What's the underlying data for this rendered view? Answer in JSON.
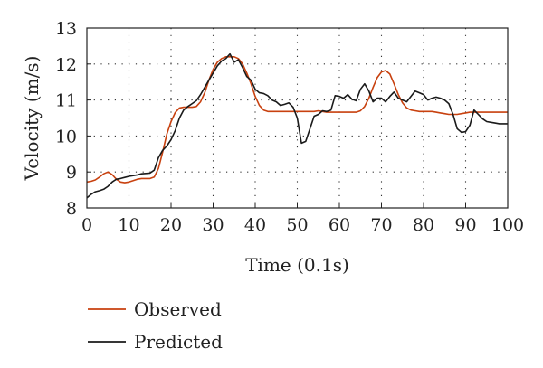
{
  "chart_data": {
    "type": "line",
    "xlabel": "Time (0.1s)",
    "ylabel": "Velocity (m/s)",
    "xlim": [
      0,
      100
    ],
    "ylim": [
      8,
      13
    ],
    "xticks": [
      "0",
      "10",
      "20",
      "30",
      "40",
      "50",
      "60",
      "70",
      "80",
      "90",
      "100"
    ],
    "yticks": [
      "8",
      "9",
      "10",
      "11",
      "12",
      "13"
    ],
    "grid": "dotted",
    "legend_position": "bottom-left",
    "series": [
      {
        "name": "Observed",
        "color": "#c8410f",
        "points": [
          [
            0,
            8.72
          ],
          [
            1,
            8.74
          ],
          [
            2,
            8.78
          ],
          [
            3,
            8.86
          ],
          [
            4,
            8.95
          ],
          [
            5,
            9.0
          ],
          [
            6,
            8.93
          ],
          [
            7,
            8.8
          ],
          [
            8,
            8.72
          ],
          [
            9,
            8.7
          ],
          [
            10,
            8.72
          ],
          [
            11,
            8.76
          ],
          [
            12,
            8.8
          ],
          [
            13,
            8.82
          ],
          [
            14,
            8.82
          ],
          [
            15,
            8.82
          ],
          [
            16,
            8.86
          ],
          [
            17,
            9.1
          ],
          [
            18,
            9.55
          ],
          [
            19,
            10.05
          ],
          [
            20,
            10.4
          ],
          [
            21,
            10.65
          ],
          [
            22,
            10.78
          ],
          [
            23,
            10.8
          ],
          [
            24,
            10.8
          ],
          [
            25,
            10.8
          ],
          [
            26,
            10.82
          ],
          [
            27,
            10.95
          ],
          [
            28,
            11.2
          ],
          [
            29,
            11.55
          ],
          [
            30,
            11.85
          ],
          [
            31,
            12.05
          ],
          [
            32,
            12.15
          ],
          [
            33,
            12.2
          ],
          [
            34,
            12.2
          ],
          [
            35,
            12.2
          ],
          [
            36,
            12.15
          ],
          [
            37,
            12.0
          ],
          [
            38,
            11.75
          ],
          [
            39,
            11.45
          ],
          [
            40,
            11.1
          ],
          [
            41,
            10.85
          ],
          [
            42,
            10.72
          ],
          [
            43,
            10.68
          ],
          [
            44,
            10.68
          ],
          [
            45,
            10.68
          ],
          [
            46,
            10.68
          ],
          [
            47,
            10.68
          ],
          [
            48,
            10.68
          ],
          [
            49,
            10.68
          ],
          [
            50,
            10.68
          ],
          [
            51,
            10.68
          ],
          [
            52,
            10.68
          ],
          [
            53,
            10.68
          ],
          [
            54,
            10.68
          ],
          [
            55,
            10.7
          ],
          [
            56,
            10.68
          ],
          [
            57,
            10.66
          ],
          [
            58,
            10.66
          ],
          [
            59,
            10.66
          ],
          [
            60,
            10.66
          ],
          [
            61,
            10.66
          ],
          [
            62,
            10.66
          ],
          [
            63,
            10.66
          ],
          [
            64,
            10.66
          ],
          [
            65,
            10.7
          ],
          [
            66,
            10.82
          ],
          [
            67,
            11.05
          ],
          [
            68,
            11.35
          ],
          [
            69,
            11.62
          ],
          [
            70,
            11.78
          ],
          [
            71,
            11.82
          ],
          [
            72,
            11.72
          ],
          [
            73,
            11.45
          ],
          [
            74,
            11.15
          ],
          [
            75,
            10.92
          ],
          [
            76,
            10.78
          ],
          [
            77,
            10.72
          ],
          [
            78,
            10.7
          ],
          [
            79,
            10.68
          ],
          [
            80,
            10.68
          ],
          [
            81,
            10.68
          ],
          [
            82,
            10.68
          ],
          [
            83,
            10.66
          ],
          [
            84,
            10.64
          ],
          [
            85,
            10.62
          ],
          [
            86,
            10.6
          ],
          [
            87,
            10.6
          ],
          [
            88,
            10.6
          ],
          [
            89,
            10.62
          ],
          [
            90,
            10.64
          ],
          [
            91,
            10.66
          ],
          [
            92,
            10.66
          ],
          [
            93,
            10.66
          ],
          [
            94,
            10.66
          ],
          [
            95,
            10.66
          ],
          [
            96,
            10.66
          ],
          [
            97,
            10.66
          ],
          [
            98,
            10.66
          ],
          [
            99,
            10.66
          ],
          [
            100,
            10.66
          ]
        ]
      },
      {
        "name": "Predicted",
        "color": "#1a1a1a",
        "points": [
          [
            0,
            8.28
          ],
          [
            1,
            8.38
          ],
          [
            2,
            8.45
          ],
          [
            3,
            8.48
          ],
          [
            4,
            8.52
          ],
          [
            5,
            8.6
          ],
          [
            6,
            8.72
          ],
          [
            7,
            8.8
          ],
          [
            8,
            8.82
          ],
          [
            9,
            8.85
          ],
          [
            10,
            8.88
          ],
          [
            11,
            8.9
          ],
          [
            12,
            8.92
          ],
          [
            13,
            8.95
          ],
          [
            14,
            8.96
          ],
          [
            15,
            8.97
          ],
          [
            16,
            9.05
          ],
          [
            17,
            9.4
          ],
          [
            18,
            9.6
          ],
          [
            19,
            9.72
          ],
          [
            20,
            9.9
          ],
          [
            21,
            10.15
          ],
          [
            22,
            10.5
          ],
          [
            23,
            10.72
          ],
          [
            24,
            10.82
          ],
          [
            25,
            10.9
          ],
          [
            26,
            10.98
          ],
          [
            27,
            11.15
          ],
          [
            28,
            11.35
          ],
          [
            29,
            11.55
          ],
          [
            30,
            11.75
          ],
          [
            31,
            11.95
          ],
          [
            32,
            12.08
          ],
          [
            33,
            12.15
          ],
          [
            34,
            12.28
          ],
          [
            35,
            12.05
          ],
          [
            36,
            12.12
          ],
          [
            37,
            11.9
          ],
          [
            38,
            11.65
          ],
          [
            39,
            11.55
          ],
          [
            40,
            11.3
          ],
          [
            41,
            11.2
          ],
          [
            42,
            11.18
          ],
          [
            43,
            11.12
          ],
          [
            44,
            11.0
          ],
          [
            45,
            10.95
          ],
          [
            46,
            10.85
          ],
          [
            47,
            10.88
          ],
          [
            48,
            10.92
          ],
          [
            49,
            10.8
          ],
          [
            50,
            10.5
          ],
          [
            51,
            9.8
          ],
          [
            52,
            9.85
          ],
          [
            53,
            10.2
          ],
          [
            54,
            10.55
          ],
          [
            55,
            10.6
          ],
          [
            56,
            10.7
          ],
          [
            57,
            10.68
          ],
          [
            58,
            10.72
          ],
          [
            59,
            11.12
          ],
          [
            60,
            11.1
          ],
          [
            61,
            11.05
          ],
          [
            62,
            11.15
          ],
          [
            63,
            11.02
          ],
          [
            64,
            10.98
          ],
          [
            65,
            11.3
          ],
          [
            66,
            11.45
          ],
          [
            67,
            11.25
          ],
          [
            68,
            10.95
          ],
          [
            69,
            11.05
          ],
          [
            70,
            11.05
          ],
          [
            71,
            10.95
          ],
          [
            72,
            11.1
          ],
          [
            73,
            11.22
          ],
          [
            74,
            11.05
          ],
          [
            75,
            11.0
          ],
          [
            76,
            10.95
          ],
          [
            77,
            11.1
          ],
          [
            78,
            11.25
          ],
          [
            79,
            11.2
          ],
          [
            80,
            11.15
          ],
          [
            81,
            11.0
          ],
          [
            82,
            11.05
          ],
          [
            83,
            11.08
          ],
          [
            84,
            11.05
          ],
          [
            85,
            11.0
          ],
          [
            86,
            10.9
          ],
          [
            87,
            10.6
          ],
          [
            88,
            10.2
          ],
          [
            89,
            10.1
          ],
          [
            90,
            10.12
          ],
          [
            91,
            10.3
          ],
          [
            92,
            10.72
          ],
          [
            93,
            10.6
          ],
          [
            94,
            10.48
          ],
          [
            95,
            10.4
          ],
          [
            96,
            10.38
          ],
          [
            97,
            10.36
          ],
          [
            98,
            10.34
          ],
          [
            99,
            10.34
          ],
          [
            100,
            10.34
          ]
        ]
      }
    ]
  }
}
